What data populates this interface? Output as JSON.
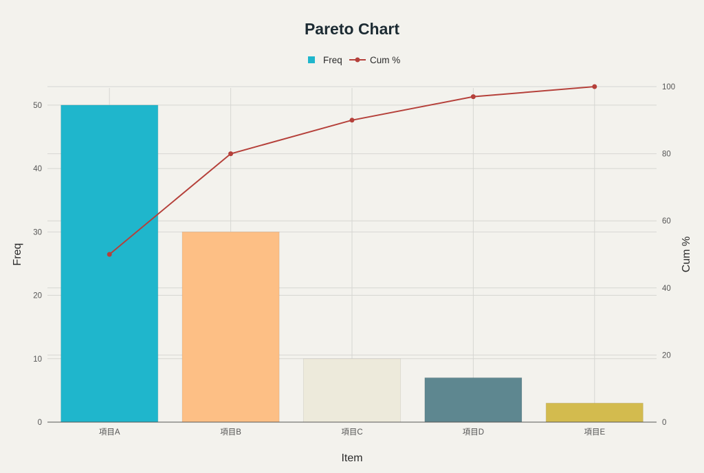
{
  "chart_data": {
    "type": "bar",
    "title": "Pareto Chart",
    "xlabel": "Item",
    "ylabel": "Freq",
    "y2label": "Cum %",
    "categories": [
      "項目A",
      "項目B",
      "項目C",
      "項目D",
      "項目E"
    ],
    "series": [
      {
        "name": "Freq",
        "type": "bar",
        "axis": "left",
        "values": [
          50,
          30,
          10,
          7,
          3
        ]
      },
      {
        "name": "Cum %",
        "type": "line",
        "axis": "right",
        "values": [
          50,
          80,
          90,
          97,
          100
        ]
      }
    ],
    "ylim": [
      0,
      52.7
    ],
    "y2lim": [
      0,
      100
    ],
    "yticks": [
      0,
      10,
      20,
      30,
      40,
      50
    ],
    "y2ticks": [
      0,
      20,
      40,
      60,
      80,
      100
    ],
    "grid": true,
    "legend": "top-center",
    "colors": {
      "bars": [
        "#1fb6cc",
        "#fdbf85",
        "#edeadb",
        "#5e8790",
        "#d3bb4e"
      ],
      "line": "#b5403a"
    }
  }
}
